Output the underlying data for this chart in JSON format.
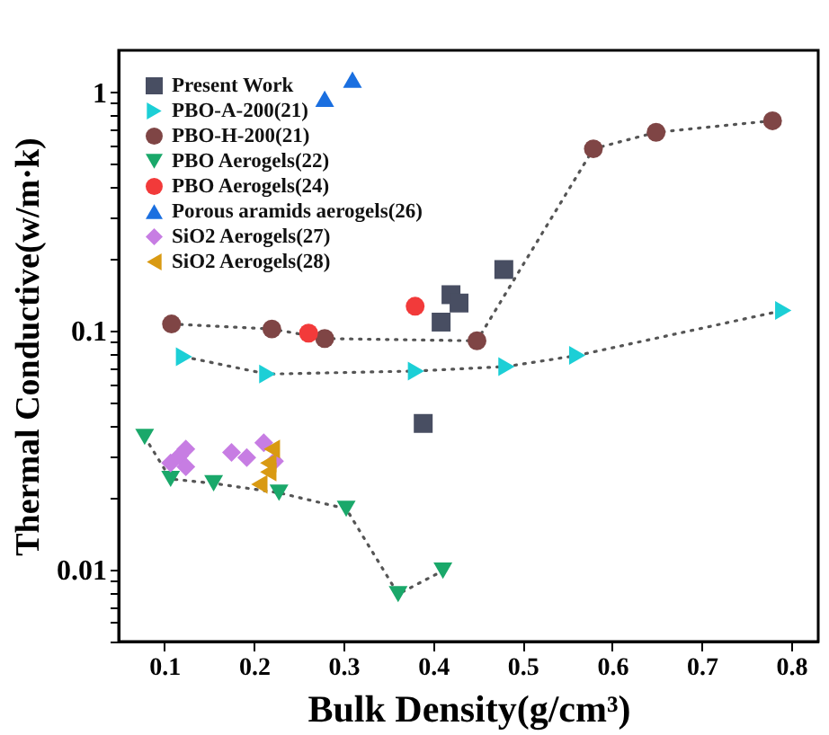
{
  "chart_data": {
    "type": "scatter",
    "xlabel": "Bulk Density(g/cm³)",
    "ylabel": "Thermal Conductive(w/m·k)",
    "log": "y",
    "grid": false,
    "legend": "top left",
    "xlim": [
      0.049,
      0.83
    ],
    "ylim": [
      0.005,
      1.5
    ],
    "xticks": [
      0.1,
      0.2,
      0.3,
      0.4,
      0.5,
      0.6,
      0.7,
      0.8
    ],
    "yticks": [
      {
        "value": 0.005,
        "label": null
      },
      {
        "value": 0.006,
        "label": null
      },
      {
        "value": 0.007,
        "label": null
      },
      {
        "value": 0.008,
        "label": null
      },
      {
        "value": 0.009,
        "label": null
      },
      0.01,
      {
        "value": 0.02,
        "label": null
      },
      {
        "value": 0.03,
        "label": null
      },
      {
        "value": 0.04,
        "label": null
      },
      {
        "value": 0.05,
        "label": null
      },
      {
        "value": 0.06,
        "label": null
      },
      {
        "value": 0.07,
        "label": null
      },
      {
        "value": 0.08,
        "label": null
      },
      {
        "value": 0.09,
        "label": null
      },
      0.1,
      {
        "value": 0.2,
        "label": null
      },
      {
        "value": 0.3,
        "label": null
      },
      {
        "value": 0.4,
        "label": null
      },
      {
        "value": 0.5,
        "label": null
      },
      {
        "value": 0.6,
        "label": null
      },
      {
        "value": 0.7,
        "label": null
      },
      {
        "value": 0.8,
        "label": null
      },
      {
        "value": 0.9,
        "label": null
      },
      1
    ],
    "series": [
      {
        "name": "Present Work",
        "marker": "square",
        "color": "#484e62",
        "x": [
          0.389,
          0.409,
          0.42,
          0.429,
          0.479
        ],
        "values": [
          0.041,
          0.109,
          0.142,
          0.131,
          0.181
        ]
      },
      {
        "name": "PBO-A-200(21)",
        "type": "line",
        "line_style": "dotted",
        "marker": "triangle-right",
        "color": "#1ccfd6",
        "x": [
          0.122,
          0.215,
          0.381,
          0.482,
          0.561,
          0.791
        ],
        "values": [
          0.078,
          0.066,
          0.068,
          0.071,
          0.079,
          0.122
        ]
      },
      {
        "name": "PBO-H-200(21)",
        "type": "line",
        "line_style": "dotted",
        "marker": "circle",
        "color": "#7f4545",
        "x": [
          0.108,
          0.22,
          0.279,
          0.449,
          0.579,
          0.649,
          0.779
        ],
        "values": [
          0.107,
          0.102,
          0.093,
          0.091,
          0.58,
          0.68,
          0.76
        ]
      },
      {
        "name": "PBO Aerogels(22)",
        "type": "line",
        "line_style": "dotted",
        "marker": "triangle-down",
        "color": "#1aa86a",
        "x": [
          0.078,
          0.107,
          0.155,
          0.228,
          0.303,
          0.361,
          0.411
        ],
        "values": [
          0.036,
          0.024,
          0.023,
          0.021,
          0.018,
          0.0079,
          0.0099
        ]
      },
      {
        "name": "PBO Aerogels(24)",
        "marker": "circle",
        "color": "#f23a3a",
        "x": [
          0.261,
          0.38
        ],
        "values": [
          0.098,
          0.127
        ]
      },
      {
        "name": "Porous aramids aerogels(26)",
        "marker": "triangle-up",
        "color": "#1a6fe0",
        "x": [
          0.279,
          0.31
        ],
        "values": [
          0.94,
          1.13
        ]
      },
      {
        "name": "SiO2 Aerogels(27)",
        "marker": "diamond",
        "color": "#c77de3",
        "x": [
          0.107,
          0.117,
          0.124,
          0.124,
          0.175,
          0.192,
          0.211,
          0.223
        ],
        "values": [
          0.028,
          0.03,
          0.032,
          0.027,
          0.031,
          0.0295,
          0.034,
          0.0285
        ]
      },
      {
        "name": "SiO2 Aerogels(28)",
        "marker": "triangle-left",
        "color": "#d99a12",
        "x": [
          0.206,
          0.216,
          0.22,
          0.216
        ],
        "values": [
          0.0228,
          0.028,
          0.032,
          0.0257
        ]
      }
    ]
  }
}
